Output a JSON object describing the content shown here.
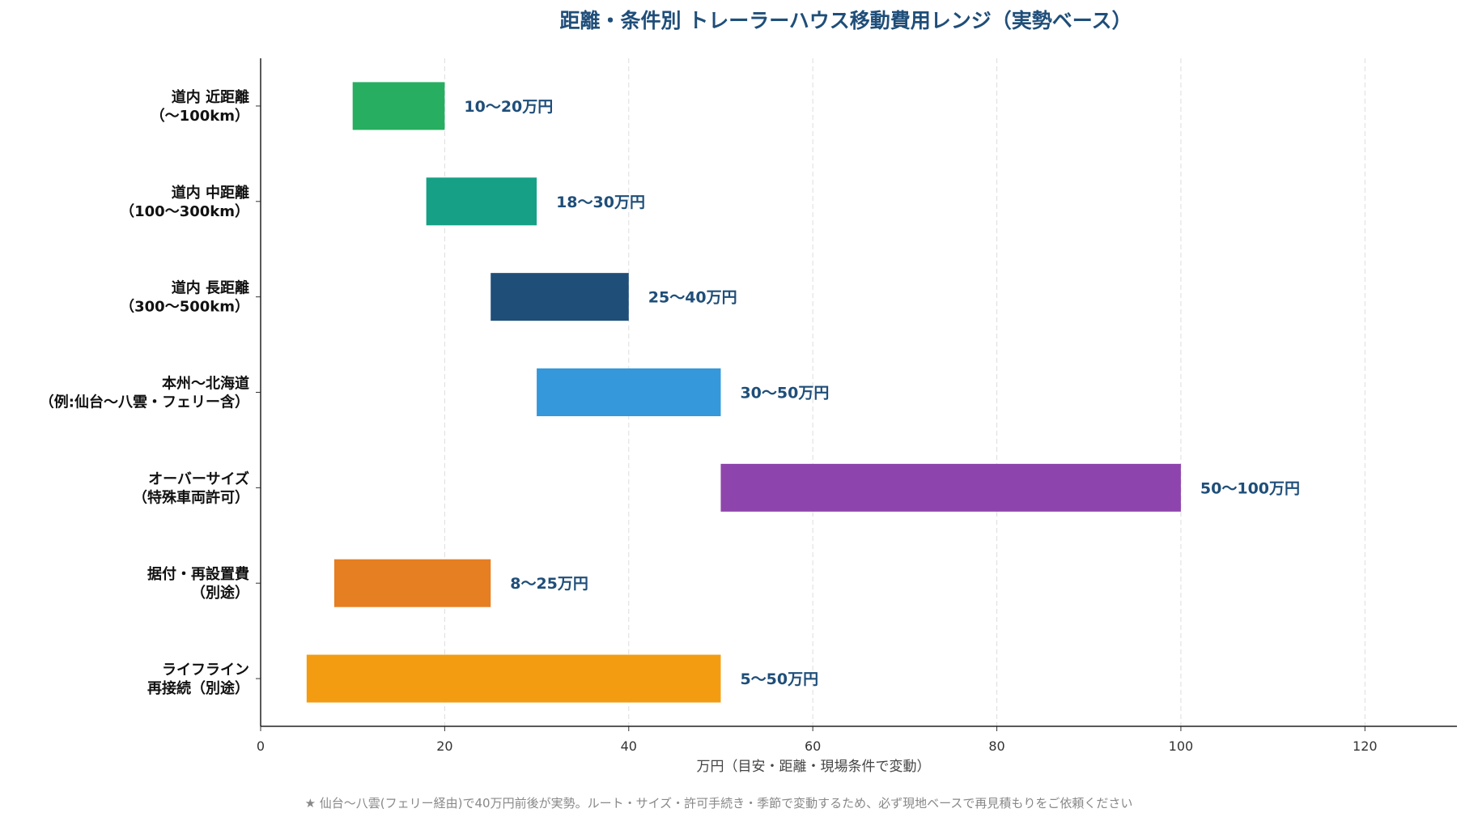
{
  "chart_data": {
    "type": "bar",
    "orientation": "horizontal-range",
    "title": "距離・条件別 トレーラーハウス移動費用レンジ（実勢ベース）",
    "xlabel": "万円（目安・距離・現場条件で変動）",
    "ylabel": "",
    "xlim": [
      0,
      130
    ],
    "xticks": [
      0,
      20,
      40,
      60,
      80,
      100,
      120
    ],
    "grid": "x-dashed",
    "categories": [
      [
        "道内 近距離",
        "（〜100km）"
      ],
      [
        "道内 中距離",
        "（100〜300km）"
      ],
      [
        "道内 長距離",
        "（300〜500km）"
      ],
      [
        "本州〜北海道",
        "（例:仙台〜八雲・フェリー含）"
      ],
      [
        "オーバーサイズ",
        "（特殊車両許可）"
      ],
      [
        "据付・再設置費",
        "（別途）"
      ],
      [
        "ライフライン",
        "再接続（別途）"
      ]
    ],
    "ranges": [
      [
        10,
        20
      ],
      [
        18,
        30
      ],
      [
        25,
        40
      ],
      [
        30,
        50
      ],
      [
        50,
        100
      ],
      [
        8,
        25
      ],
      [
        5,
        50
      ]
    ],
    "data_labels": [
      "10〜20万円",
      "18〜30万円",
      "25〜40万円",
      "30〜50万円",
      "50〜100万円",
      "8〜25万円",
      "5〜50万円"
    ],
    "colors": [
      "#27ae60",
      "#16a085",
      "#1f4e79",
      "#3498db",
      "#8e44ad",
      "#e67e22",
      "#f39c12"
    ]
  },
  "footnote": "★ 仙台〜八雲(フェリー経由)で40万円前後が実勢。ルート・サイズ・許可手続き・季節で変動するため、必ず現地ベースで再見積もりをご依頼ください"
}
